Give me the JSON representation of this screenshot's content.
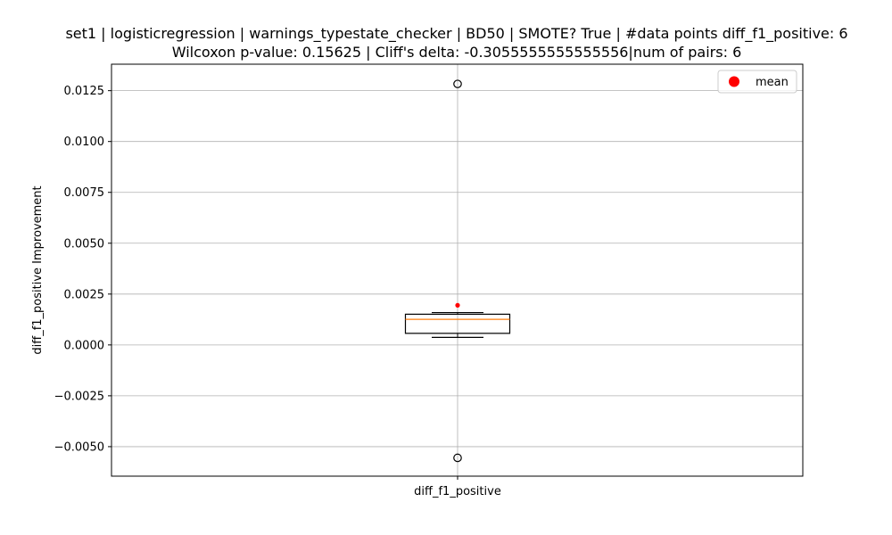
{
  "chart_data": {
    "type": "box",
    "title_line1": "set1 | logisticregression | warnings_typestate_checker | BD50 | SMOTE? True | #data points diff_f1_positive: 6",
    "title_line2": "Wilcoxon p-value: 0.15625 | Cliff's delta: -0.3055555555555556|num of pairs: 6",
    "xlabel": "",
    "ylabel": "diff_f1_positive Improvement",
    "categories": [
      "diff_f1_positive"
    ],
    "ylim": [
      -0.00645,
      0.0138
    ],
    "yticks": [
      -0.005,
      -0.0025,
      0.0,
      0.0025,
      0.005,
      0.0075,
      0.01,
      0.0125
    ],
    "ytick_labels": [
      "−0.0050",
      "−0.0025",
      "0.0000",
      "0.0025",
      "0.0050",
      "0.0075",
      "0.0100",
      "0.0125"
    ],
    "grid": true,
    "legend": {
      "position": "top-right",
      "entries": [
        {
          "label": "mean",
          "color": "#ff0000",
          "marker": "circle"
        }
      ]
    },
    "box": {
      "whisker_low": 0.00037,
      "q1": 0.00057,
      "median": 0.00126,
      "q3": 0.00151,
      "whisker_high": 0.00159,
      "mean": 0.00195,
      "outliers": [
        0.01283,
        -0.00555
      ]
    },
    "colors": {
      "median": "#ff7f0e",
      "mean": "#ff0000",
      "grid": "#b0b0b0",
      "box": "#000000"
    }
  }
}
